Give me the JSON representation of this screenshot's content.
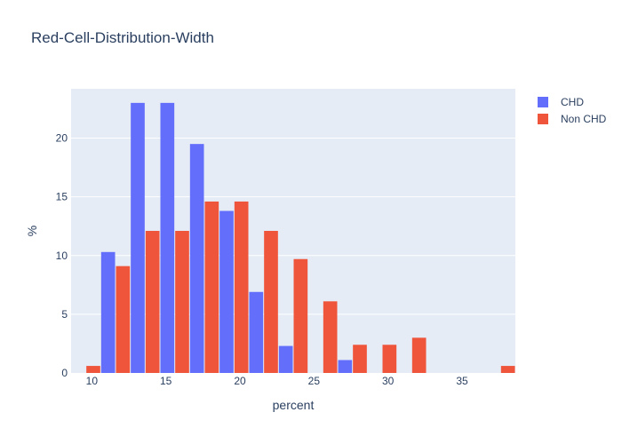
{
  "chart_data": {
    "type": "bar",
    "title": "Red-Cell-Distribution-Width",
    "xlabel": "percent",
    "ylabel": "%",
    "x": [
      9.6,
      11.6,
      13.6,
      15.6,
      17.6,
      19.6,
      21.6,
      23.6,
      25.6,
      27.6,
      29.6,
      31.6,
      33.6,
      35.6,
      37.6
    ],
    "series": [
      {
        "name": "CHD",
        "color": "#636efa",
        "values": [
          0,
          10.3,
          23,
          23,
          19.5,
          13.8,
          6.9,
          2.3,
          0,
          1.1,
          0,
          0,
          0,
          0,
          0
        ]
      },
      {
        "name": "Non CHD",
        "color": "#ef553b",
        "values": [
          0.6,
          9.1,
          12.1,
          12.1,
          14.6,
          14.6,
          12.1,
          9.7,
          6.1,
          2.4,
          2.4,
          3.0,
          0,
          0,
          0.6
        ]
      }
    ],
    "xlim": [
      8.6,
      38.6
    ],
    "ylim": [
      0,
      24.2
    ],
    "xticks": [
      10,
      15,
      20,
      25,
      30,
      35
    ],
    "yticks": [
      0,
      5,
      10,
      15,
      20
    ],
    "grid": true,
    "legend_position": "top-right",
    "background_color": "#e5ecf6"
  }
}
